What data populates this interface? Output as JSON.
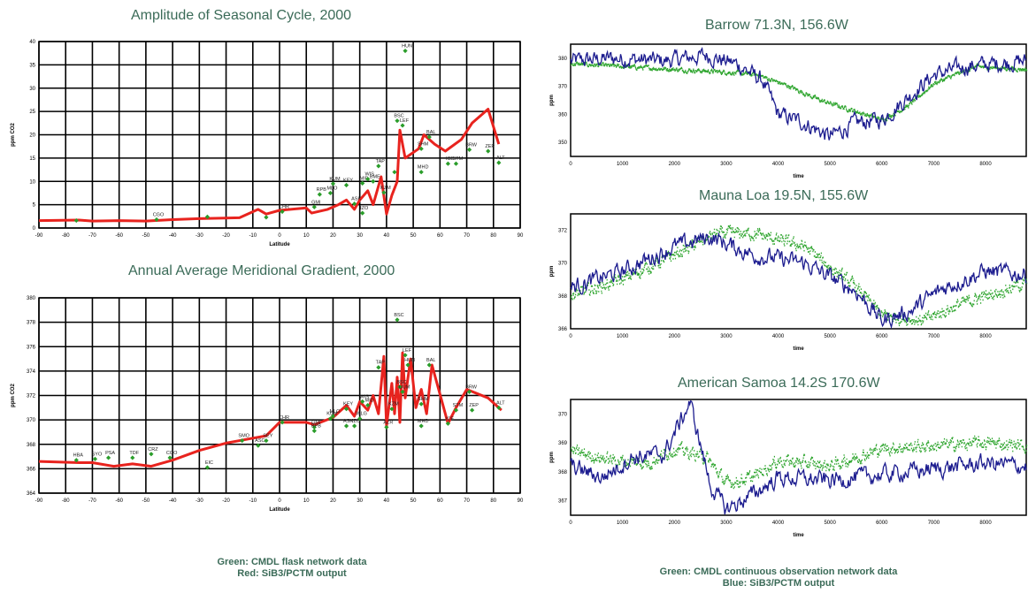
{
  "colors": {
    "model": "#e8231e",
    "flask": "#2a9d2a",
    "continuous": "#2ea52e",
    "model_blue": "#1c1c8f",
    "title": "#3b6b58"
  },
  "left_notes": {
    "line1": "Green:  CMDL flask network data",
    "line2": "Red:  SiB3/PCTM output"
  },
  "right_notes": {
    "line1": "Green:  CMDL continuous observation network data",
    "line2": "Blue:  SiB3/PCTM output"
  },
  "chart_data": [
    {
      "type": "line",
      "title": "Amplitude of Seasonal Cycle, 2000",
      "xlabel": "Latitude",
      "ylabel": "ppm CO2",
      "xlim": [
        -90,
        90
      ],
      "ylim": [
        0,
        40
      ],
      "xticks": [
        "-90",
        "-80",
        "-70",
        "-60",
        "-50",
        "-40",
        "-30",
        "-20",
        "-10",
        "0",
        "10",
        "20",
        "30",
        "40",
        "50",
        "60",
        "70",
        "80",
        "90"
      ],
      "yticks": [
        "0",
        "5",
        "10",
        "15",
        "20",
        "25",
        "30",
        "35",
        "40"
      ],
      "grid": true,
      "model_line": [
        [
          -90,
          1.6
        ],
        [
          -75,
          1.7
        ],
        [
          -70,
          1.5
        ],
        [
          -60,
          1.6
        ],
        [
          -50,
          1.5
        ],
        [
          -40,
          1.8
        ],
        [
          -30,
          2
        ],
        [
          -15,
          2.2
        ],
        [
          -8,
          4
        ],
        [
          -5,
          3
        ],
        [
          0,
          3.8
        ],
        [
          10,
          4.3
        ],
        [
          12,
          3.2
        ],
        [
          18,
          4
        ],
        [
          22,
          5
        ],
        [
          25,
          6
        ],
        [
          28,
          4
        ],
        [
          30,
          6
        ],
        [
          33,
          8
        ],
        [
          35,
          5
        ],
        [
          38,
          11
        ],
        [
          40,
          3
        ],
        [
          42,
          7
        ],
        [
          44,
          10
        ],
        [
          45,
          21
        ],
        [
          47,
          15
        ],
        [
          52,
          17
        ],
        [
          54,
          20
        ],
        [
          58,
          18
        ],
        [
          62,
          16.5
        ],
        [
          68,
          19
        ],
        [
          72,
          22.5
        ],
        [
          78,
          25.5
        ],
        [
          82,
          18
        ]
      ],
      "flask_points": [
        {
          "x": -76,
          "y": 1.6,
          "label": ""
        },
        {
          "x": -46,
          "y": 1.8,
          "label": "CGO"
        },
        {
          "x": -27,
          "y": 2.4,
          "label": ""
        },
        {
          "x": -5,
          "y": 2.3,
          "label": ""
        },
        {
          "x": 1,
          "y": 3.5,
          "label": "CHR"
        },
        {
          "x": 13,
          "y": 4.5,
          "label": "GMI"
        },
        {
          "x": 15,
          "y": 7.2,
          "label": "RPB"
        },
        {
          "x": 19,
          "y": 7.5,
          "label": "MLO"
        },
        {
          "x": 20,
          "y": 9.5,
          "label": "KUM"
        },
        {
          "x": 25,
          "y": 9.2,
          "label": "KEY"
        },
        {
          "x": 28,
          "y": 5.2,
          "label": "ASK"
        },
        {
          "x": 31,
          "y": 9.6,
          "label": "MID"
        },
        {
          "x": 31,
          "y": 3.2,
          "label": "IZO"
        },
        {
          "x": 33,
          "y": 10.5,
          "label": "WIS"
        },
        {
          "x": 35,
          "y": 10,
          "label": "BME"
        },
        {
          "x": 37,
          "y": 13.3,
          "label": "TAP"
        },
        {
          "x": 39,
          "y": 7.6,
          "label": "KZM"
        },
        {
          "x": 43,
          "y": 12,
          "label": ""
        },
        {
          "x": 44,
          "y": 23,
          "label": "BSC"
        },
        {
          "x": 46,
          "y": 22,
          "label": "LEF"
        },
        {
          "x": 47,
          "y": 38,
          "label": "HUN"
        },
        {
          "x": 53,
          "y": 17,
          "label": "SHM"
        },
        {
          "x": 53,
          "y": 12,
          "label": "MHD"
        },
        {
          "x": 56,
          "y": 19.5,
          "label": "BAL"
        },
        {
          "x": 63,
          "y": 13.8,
          "label": "ICE"
        },
        {
          "x": 66,
          "y": 13.8,
          "label": "STM"
        },
        {
          "x": 71,
          "y": 16.8,
          "label": "BRW"
        },
        {
          "x": 78,
          "y": 16.5,
          "label": "ZEP"
        },
        {
          "x": 82,
          "y": 14,
          "label": "ALT"
        }
      ]
    },
    {
      "type": "line",
      "title": "Annual Average Meridional Gradient, 2000",
      "xlabel": "Latitude",
      "ylabel": "ppm CO2",
      "xlim": [
        -90,
        90
      ],
      "ylim": [
        364,
        380
      ],
      "xticks": [
        "-90",
        "-80",
        "-70",
        "-60",
        "-50",
        "-40",
        "-30",
        "-20",
        "-10",
        "0",
        "10",
        "20",
        "30",
        "40",
        "50",
        "60",
        "70",
        "80",
        "90"
      ],
      "yticks": [
        "364",
        "366",
        "368",
        "370",
        "372",
        "374",
        "376",
        "378",
        "380"
      ],
      "grid": true,
      "model_line": [
        [
          -90,
          366.6
        ],
        [
          -75,
          366.5
        ],
        [
          -70,
          366.5
        ],
        [
          -62,
          366.2
        ],
        [
          -55,
          366.4
        ],
        [
          -48,
          366.2
        ],
        [
          -40,
          366.7
        ],
        [
          -30,
          367.5
        ],
        [
          -20,
          368.1
        ],
        [
          -10,
          368.5
        ],
        [
          -5,
          368.7
        ],
        [
          0,
          369.8
        ],
        [
          10,
          369.8
        ],
        [
          13,
          369.6
        ],
        [
          20,
          370.2
        ],
        [
          25,
          371.2
        ],
        [
          28,
          370.3
        ],
        [
          30,
          371.5
        ],
        [
          33,
          370.8
        ],
        [
          35,
          372
        ],
        [
          37,
          370.5
        ],
        [
          39,
          375.2
        ],
        [
          40,
          369.5
        ],
        [
          42,
          373
        ],
        [
          43,
          370.5
        ],
        [
          44,
          373.5
        ],
        [
          45,
          369.8
        ],
        [
          46,
          375.5
        ],
        [
          47,
          371.8
        ],
        [
          49,
          375
        ],
        [
          51,
          371
        ],
        [
          53,
          372.5
        ],
        [
          55,
          370.5
        ],
        [
          57,
          374.5
        ],
        [
          63,
          369.7
        ],
        [
          66,
          371
        ],
        [
          70,
          372.5
        ],
        [
          78,
          371.8
        ],
        [
          83,
          370.8
        ]
      ],
      "flask_points": [
        {
          "x": -76,
          "y": 366.7,
          "label": "HBA"
        },
        {
          "x": -69,
          "y": 366.8,
          "label": "SYO"
        },
        {
          "x": -64,
          "y": 366.9,
          "label": "PSA"
        },
        {
          "x": -55,
          "y": 366.9,
          "label": "TDF"
        },
        {
          "x": -48,
          "y": 367.2,
          "label": "CRZ"
        },
        {
          "x": -41,
          "y": 366.9,
          "label": "CGO"
        },
        {
          "x": -27,
          "y": 366.1,
          "label": "EIC"
        },
        {
          "x": -14,
          "y": 368.3,
          "label": "SMO"
        },
        {
          "x": -8,
          "y": 367.9,
          "label": "ASC"
        },
        {
          "x": -5,
          "y": 368.3,
          "label": "SEY"
        },
        {
          "x": 1,
          "y": 369.8,
          "label": "CHR"
        },
        {
          "x": 13,
          "y": 369.4,
          "label": "GMI"
        },
        {
          "x": 13,
          "y": 369.1,
          "label": "RPB"
        },
        {
          "x": 19,
          "y": 370.1,
          "label": "KUM"
        },
        {
          "x": 20,
          "y": 370.3,
          "label": "MLO"
        },
        {
          "x": 25,
          "y": 370.9,
          "label": "KEY"
        },
        {
          "x": 25,
          "y": 369.5,
          "label": "ASK"
        },
        {
          "x": 28,
          "y": 369.5,
          "label": "IZO"
        },
        {
          "x": 30,
          "y": 370.1,
          "label": "WLG"
        },
        {
          "x": 31,
          "y": 371.5,
          "label": "WIS"
        },
        {
          "x": 33,
          "y": 371.2,
          "label": "MID"
        },
        {
          "x": 37,
          "y": 374.3,
          "label": "TAP"
        },
        {
          "x": 42,
          "y": 370.9,
          "label": "KZM"
        },
        {
          "x": 40,
          "y": 369.4,
          "label": "AZR"
        },
        {
          "x": 44,
          "y": 378.2,
          "label": "BSC"
        },
        {
          "x": 45,
          "y": 372.7,
          "label": "BSC"
        },
        {
          "x": 46,
          "y": 372.3,
          "label": "UUM"
        },
        {
          "x": 47,
          "y": 375.3,
          "label": "LEF"
        },
        {
          "x": 48,
          "y": 374.5,
          "label": "HUN"
        },
        {
          "x": 53,
          "y": 371.3,
          "label": "SHM"
        },
        {
          "x": 53,
          "y": 369.5,
          "label": "MHD"
        },
        {
          "x": 56,
          "y": 374.5,
          "label": "BAL"
        },
        {
          "x": 63,
          "y": 369.7,
          "label": "ICE"
        },
        {
          "x": 66,
          "y": 370.8,
          "label": "STM"
        },
        {
          "x": 71,
          "y": 372.3,
          "label": "BRW"
        },
        {
          "x": 72,
          "y": 370.8,
          "label": "ZEP"
        },
        {
          "x": 82,
          "y": 371,
          "label": "ALT"
        }
      ]
    },
    {
      "type": "line",
      "title": "Barrow  71.3N, 156.6W",
      "xlabel": "time",
      "ylabel": "ppm",
      "xlim": [
        0,
        8784
      ],
      "ylim": [
        345,
        385
      ],
      "xticks": [
        "0",
        "1000",
        "2000",
        "3000",
        "4000",
        "5000",
        "6000",
        "7000",
        "8000"
      ],
      "yticks": [
        "350",
        "360",
        "370",
        "380"
      ],
      "grid": false,
      "blue_anchors": [
        [
          0,
          379
        ],
        [
          800,
          380
        ],
        [
          1800,
          379
        ],
        [
          2600,
          381
        ],
        [
          3200,
          378
        ],
        [
          3700,
          372
        ],
        [
          4000,
          360
        ],
        [
          4500,
          357
        ],
        [
          5000,
          352
        ],
        [
          5500,
          357
        ],
        [
          6000,
          358
        ],
        [
          6500,
          366
        ],
        [
          7000,
          374
        ],
        [
          7600,
          377
        ],
        [
          8200,
          378
        ],
        [
          8784,
          379
        ]
      ],
      "green_anchors": [
        [
          0,
          378
        ],
        [
          1000,
          377
        ],
        [
          2000,
          376
        ],
        [
          3000,
          375
        ],
        [
          3600,
          374
        ],
        [
          4200,
          370
        ],
        [
          4800,
          365
        ],
        [
          5500,
          361
        ],
        [
          6000,
          358
        ],
        [
          6500,
          363
        ],
        [
          7000,
          371
        ],
        [
          7800,
          377
        ],
        [
          8784,
          376
        ]
      ]
    },
    {
      "type": "line",
      "title": "Mauna Loa  19.5N, 155.6W",
      "xlabel": "time",
      "ylabel": "ppm",
      "xlim": [
        0,
        8784
      ],
      "ylim": [
        366,
        373
      ],
      "xticks": [
        "0",
        "1000",
        "2000",
        "3000",
        "4000",
        "5000",
        "6000",
        "7000",
        "8000"
      ],
      "yticks": [
        "366",
        "368",
        "370",
        "372"
      ],
      "grid": false,
      "blue_anchors": [
        [
          0,
          368.5
        ],
        [
          1000,
          369.5
        ],
        [
          2000,
          371
        ],
        [
          2700,
          371.6
        ],
        [
          3500,
          370.5
        ],
        [
          4500,
          370
        ],
        [
          5500,
          368.3
        ],
        [
          6000,
          366.5
        ],
        [
          6500,
          367
        ],
        [
          7200,
          368.5
        ],
        [
          8000,
          369.5
        ],
        [
          8784,
          369.3
        ]
      ],
      "green_anchors": [
        [
          0,
          368
        ],
        [
          1000,
          369
        ],
        [
          2000,
          370.5
        ],
        [
          2800,
          371.8
        ],
        [
          3500,
          371.8
        ],
        [
          4500,
          371
        ],
        [
          5500,
          368.5
        ],
        [
          6000,
          366.8
        ],
        [
          6800,
          366.5
        ],
        [
          7500,
          367.5
        ],
        [
          8784,
          368.8
        ]
      ]
    },
    {
      "type": "line",
      "title": "American Samoa  14.2S  170.6W",
      "xlabel": "time",
      "ylabel": "ppm",
      "xlim": [
        0,
        8784
      ],
      "ylim": [
        366.5,
        370.5
      ],
      "xticks": [
        "0",
        "1000",
        "2000",
        "3000",
        "4000",
        "5000",
        "6000",
        "7000",
        "8000"
      ],
      "yticks": [
        "367",
        "368",
        "369",
        "370"
      ],
      "grid": false,
      "blue_anchors": [
        [
          0,
          368.2
        ],
        [
          600,
          367.8
        ],
        [
          1200,
          368.5
        ],
        [
          1800,
          368.6
        ],
        [
          2300,
          370.4
        ],
        [
          2700,
          367.5
        ],
        [
          3000,
          366.7
        ],
        [
          3500,
          367.2
        ],
        [
          4000,
          367.8
        ],
        [
          5000,
          367.7
        ],
        [
          6000,
          367.9
        ],
        [
          7000,
          368.1
        ],
        [
          8000,
          368.3
        ],
        [
          8784,
          368.2
        ]
      ],
      "green_anchors": [
        [
          0,
          368.7
        ],
        [
          800,
          368.4
        ],
        [
          1500,
          368.3
        ],
        [
          2000,
          368.8
        ],
        [
          2600,
          368.5
        ],
        [
          3000,
          367.6
        ],
        [
          3500,
          367.8
        ],
        [
          4000,
          368.4
        ],
        [
          5000,
          368.2
        ],
        [
          6000,
          368.8
        ],
        [
          7000,
          368.9
        ],
        [
          8000,
          369
        ],
        [
          8784,
          368.9
        ]
      ]
    }
  ]
}
